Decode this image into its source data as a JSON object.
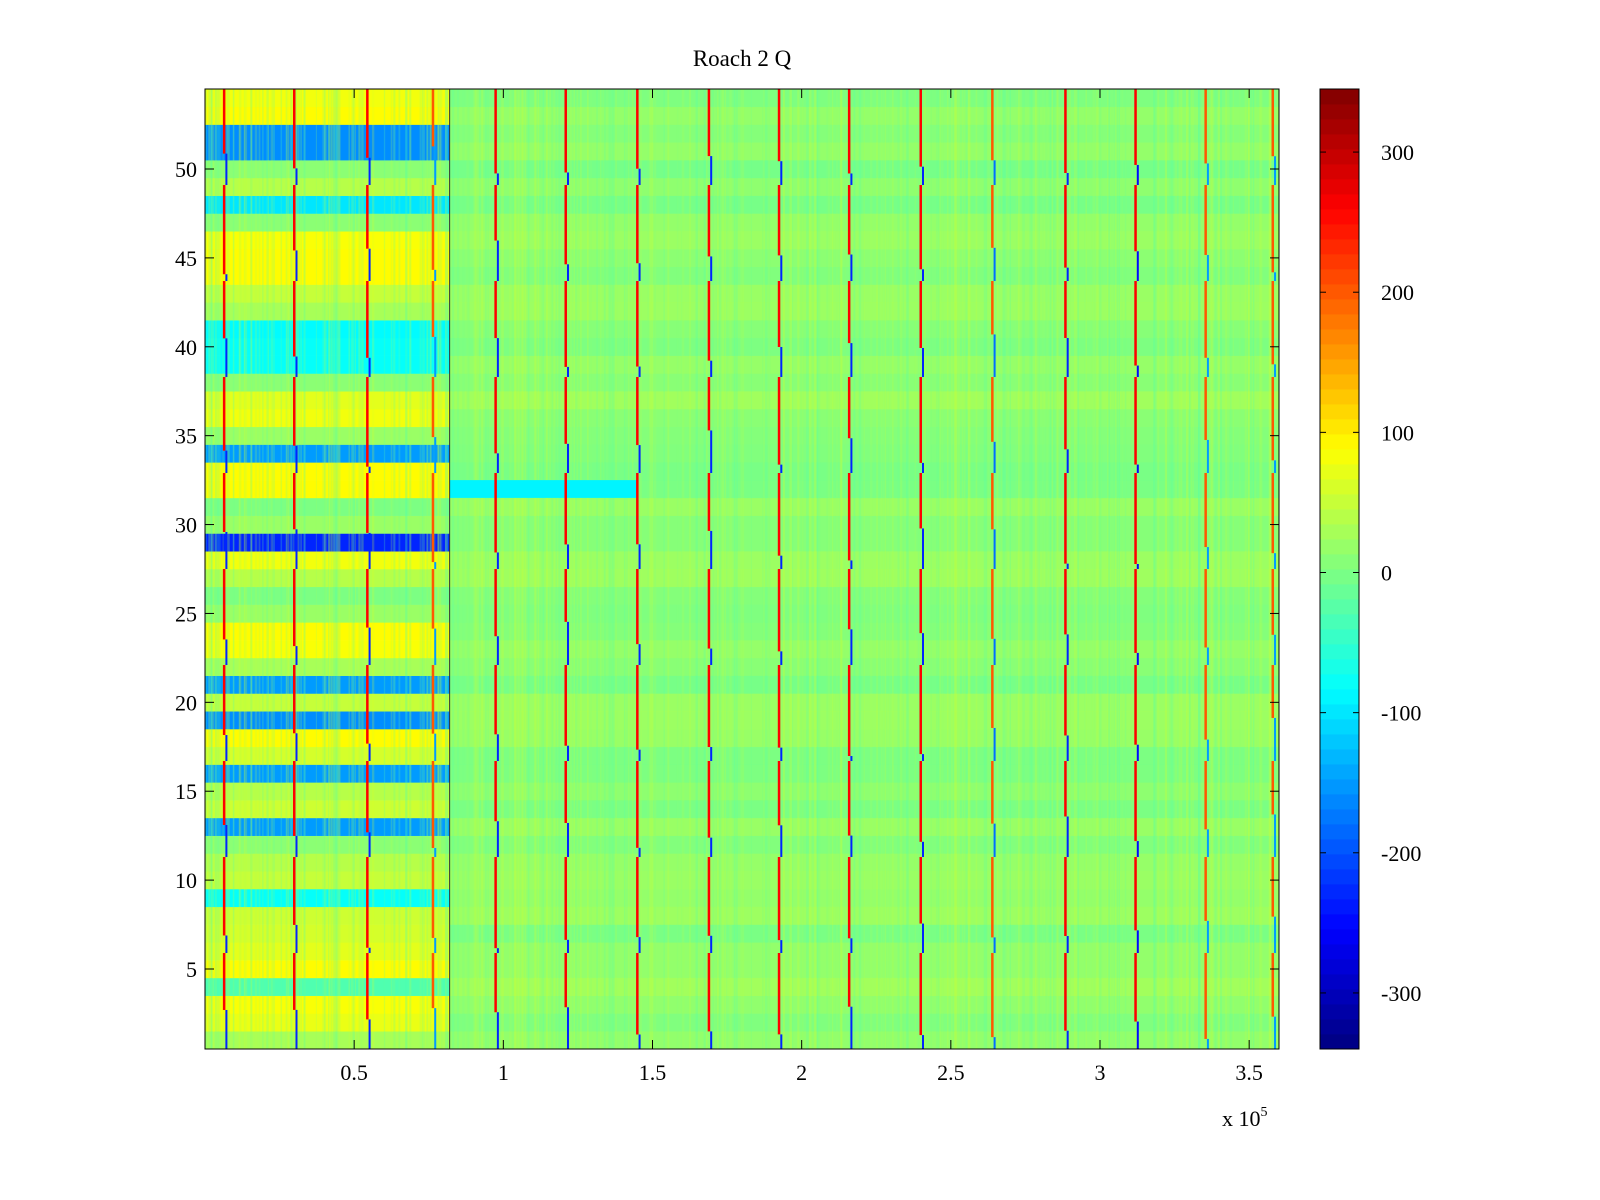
{
  "chart_data": {
    "type": "heatmap",
    "title": "Roach 2 Q",
    "xlabel": "",
    "ylabel": "",
    "x_exponent_label": "x 10",
    "x_exponent_power": "5",
    "xlim": [
      0,
      360000
    ],
    "ylim": [
      0.5,
      54.5
    ],
    "x_ticks": [
      {
        "value": 0.5,
        "label": "0.5"
      },
      {
        "value": 1,
        "label": "1"
      },
      {
        "value": 1.5,
        "label": "1.5"
      },
      {
        "value": 2,
        "label": "2"
      },
      {
        "value": 2.5,
        "label": "2.5"
      },
      {
        "value": 3,
        "label": "3"
      },
      {
        "value": 3.5,
        "label": "3.5"
      }
    ],
    "y_ticks": [
      {
        "value": 5,
        "label": "5"
      },
      {
        "value": 10,
        "label": "10"
      },
      {
        "value": 15,
        "label": "15"
      },
      {
        "value": 20,
        "label": "20"
      },
      {
        "value": 25,
        "label": "25"
      },
      {
        "value": 30,
        "label": "30"
      },
      {
        "value": 35,
        "label": "35"
      },
      {
        "value": 40,
        "label": "40"
      },
      {
        "value": 45,
        "label": "45"
      },
      {
        "value": 50,
        "label": "50"
      }
    ],
    "colorbar": {
      "colormap": "jet",
      "range": [
        -340,
        345
      ],
      "ticks": [
        {
          "value": 300,
          "label": "300"
        },
        {
          "value": 200,
          "label": "200"
        },
        {
          "value": 100,
          "label": "100"
        },
        {
          "value": 0,
          "label": "0"
        },
        {
          "value": -100,
          "label": "-100"
        },
        {
          "value": -200,
          "label": "-200"
        },
        {
          "value": -300,
          "label": "-300"
        }
      ]
    },
    "segment_boundary_x": 82000,
    "segment1_rows": [
      {
        "row": 1,
        "value": 30
      },
      {
        "row": 2,
        "value": 75
      },
      {
        "row": 3,
        "value": 85
      },
      {
        "row": 4,
        "value": -30
      },
      {
        "row": 5,
        "value": 90
      },
      {
        "row": 6,
        "value": 70
      },
      {
        "row": 7,
        "value": 60
      },
      {
        "row": 8,
        "value": 55
      },
      {
        "row": 9,
        "value": -80
      },
      {
        "row": 10,
        "value": 50
      },
      {
        "row": 11,
        "value": 40
      },
      {
        "row": 12,
        "value": 10
      },
      {
        "row": 13,
        "value": -150
      },
      {
        "row": 14,
        "value": 55
      },
      {
        "row": 15,
        "value": 40
      },
      {
        "row": 16,
        "value": -150
      },
      {
        "row": 17,
        "value": 60
      },
      {
        "row": 18,
        "value": 90
      },
      {
        "row": 19,
        "value": -160
      },
      {
        "row": 20,
        "value": 50
      },
      {
        "row": 21,
        "value": -150
      },
      {
        "row": 22,
        "value": 30
      },
      {
        "row": 23,
        "value": 85
      },
      {
        "row": 24,
        "value": 90
      },
      {
        "row": 25,
        "value": 20
      },
      {
        "row": 26,
        "value": 0
      },
      {
        "row": 27,
        "value": 40
      },
      {
        "row": 28,
        "value": 80
      },
      {
        "row": 29,
        "value": -230
      },
      {
        "row": 30,
        "value": 20
      },
      {
        "row": 31,
        "value": 0
      },
      {
        "row": 32,
        "value": 90
      },
      {
        "row": 33,
        "value": 90
      },
      {
        "row": 34,
        "value": -150
      },
      {
        "row": 35,
        "value": 20
      },
      {
        "row": 36,
        "value": 80
      },
      {
        "row": 37,
        "value": 70
      },
      {
        "row": 38,
        "value": 10
      },
      {
        "row": 39,
        "value": -80
      },
      {
        "row": 40,
        "value": -80
      },
      {
        "row": 41,
        "value": -85
      },
      {
        "row": 42,
        "value": 30
      },
      {
        "row": 43,
        "value": 50
      },
      {
        "row": 44,
        "value": 90
      },
      {
        "row": 45,
        "value": 90
      },
      {
        "row": 46,
        "value": 85
      },
      {
        "row": 47,
        "value": 10
      },
      {
        "row": 48,
        "value": -100
      },
      {
        "row": 49,
        "value": 40
      },
      {
        "row": 50,
        "value": 10
      },
      {
        "row": 51,
        "value": -160
      },
      {
        "row": 52,
        "value": -160
      },
      {
        "row": 53,
        "value": 90
      },
      {
        "row": 54,
        "value": 80
      }
    ],
    "segment2_base_value": 10,
    "segment2_features": [
      {
        "row": 32,
        "x_start": 82000,
        "x_end": 145000,
        "value": -90
      }
    ],
    "spike_columns": [
      {
        "x": 6500,
        "top_value": 260,
        "bottom_value": -230
      },
      {
        "x": 30000,
        "top_value": 260,
        "bottom_value": -230
      },
      {
        "x": 54500,
        "top_value": 260,
        "bottom_value": -230
      },
      {
        "x": 76500,
        "top_value": 200,
        "bottom_value": -150
      },
      {
        "x": 97500,
        "top_value": 260,
        "bottom_value": -230
      },
      {
        "x": 121000,
        "top_value": 260,
        "bottom_value": -230
      },
      {
        "x": 145000,
        "top_value": 260,
        "bottom_value": -230
      },
      {
        "x": 169000,
        "top_value": 260,
        "bottom_value": -230
      },
      {
        "x": 192500,
        "top_value": 260,
        "bottom_value": -230
      },
      {
        "x": 216000,
        "top_value": 260,
        "bottom_value": -230
      },
      {
        "x": 240000,
        "top_value": 260,
        "bottom_value": -230
      },
      {
        "x": 264000,
        "top_value": 200,
        "bottom_value": -180
      },
      {
        "x": 288500,
        "top_value": 260,
        "bottom_value": -230
      },
      {
        "x": 312000,
        "top_value": 260,
        "bottom_value": -250
      },
      {
        "x": 335500,
        "top_value": 200,
        "bottom_value": -150
      },
      {
        "x": 358000,
        "top_value": 200,
        "bottom_value": -150
      }
    ],
    "grid": false,
    "legend": "none"
  }
}
